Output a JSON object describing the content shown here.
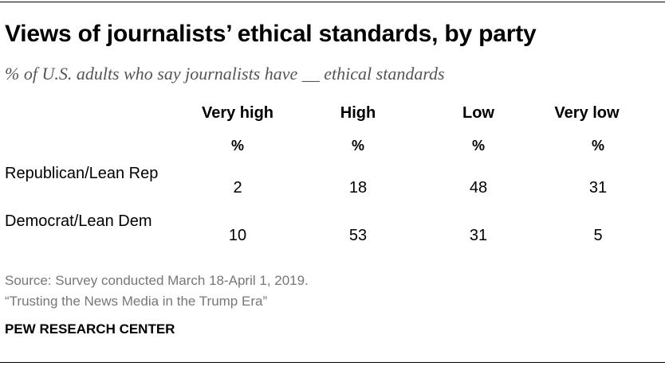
{
  "title": "Views of journalists’ ethical standards, by party",
  "subtitle": "% of U.S. adults who say journalists have __ ethical standards",
  "chart_data": {
    "type": "table",
    "title": "Views of journalists’ ethical standards, by party",
    "subtitle": "% of U.S. adults who say journalists have __ ethical standards",
    "columns": [
      "Very high",
      "High",
      "Low",
      "Very low"
    ],
    "unit_row": [
      "%",
      "%",
      "%",
      "%"
    ],
    "rows": [
      {
        "label": "Republican/Lean Rep",
        "values": [
          "2",
          "18",
          "48",
          "31"
        ]
      },
      {
        "label": "Democrat/Lean Dem",
        "values": [
          "10",
          "53",
          "31",
          "5"
        ]
      }
    ]
  },
  "footer": {
    "source": "Source: Survey conducted March 18-April 1, 2019.",
    "report": "“Trusting the News Media in the Trump Era”",
    "brand": "PEW RESEARCH CENTER"
  }
}
